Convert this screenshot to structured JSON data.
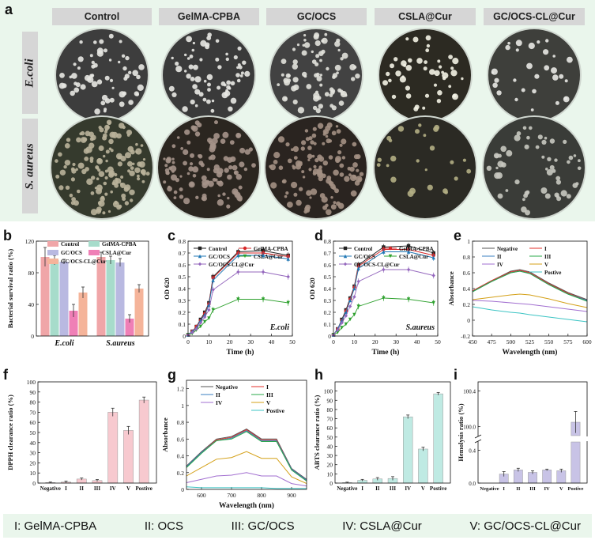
{
  "panel_a": {
    "letter": "a",
    "columns": [
      "Control",
      "GelMA-CPBA",
      "GC/OCS",
      "CSLA@Cur",
      "GC/OCS-CL@Cur"
    ],
    "rows": [
      "E.coli",
      "S. aureus"
    ],
    "background": "#eaf6ec"
  },
  "legend_bar": [
    "I: GelMA-CPBA",
    "II: OCS",
    "III: GC/OCS",
    "IV: CSLA@Cur",
    "V: GC/OCS-CL@Cur"
  ],
  "chart_data": [
    {
      "panel": "b",
      "type": "bar",
      "ylabel": "Bacterial survival ratio (%)",
      "ylim": [
        0,
        120
      ],
      "yticks": [
        0,
        40,
        80,
        120
      ],
      "categories": [
        "E.coli",
        "S.aureus"
      ],
      "legend_placement": "top",
      "series": [
        {
          "name": "Control",
          "color": "#f0a6a8",
          "values": [
            100,
            100
          ],
          "errors": [
            12,
            6
          ]
        },
        {
          "name": "GelMA-CPBA",
          "color": "#a7dccb",
          "values": [
            96,
            96
          ],
          "errors": [
            6,
            5
          ]
        },
        {
          "name": "GC/OCS",
          "color": "#b9b9e1",
          "values": [
            94,
            93
          ],
          "errors": [
            3,
            5
          ]
        },
        {
          "name": "CSLA@Cur",
          "color": "#ef7fb6",
          "values": [
            32,
            22
          ],
          "errors": [
            8,
            5
          ]
        },
        {
          "name": "GC/OCS-CL@Cur",
          "color": "#f5b49a",
          "values": [
            55,
            60
          ],
          "errors": [
            7,
            5
          ]
        }
      ]
    },
    {
      "panel": "c",
      "type": "line",
      "xlabel": "Time (h)",
      "ylabel": "OD 620",
      "annotation": "E.coli",
      "xlim": [
        0,
        50
      ],
      "xticks": [
        0,
        10,
        20,
        30,
        40,
        50
      ],
      "ylim": [
        0,
        0.8
      ],
      "yticks": [
        0.0,
        0.1,
        0.2,
        0.3,
        0.4,
        0.5,
        0.6,
        0.7,
        0.8
      ],
      "x": [
        0,
        2,
        4,
        6,
        8,
        10,
        12,
        24,
        36,
        48
      ],
      "legend_placement": "top",
      "series": [
        {
          "name": "Control",
          "color": "#222222",
          "marker": "square",
          "values": [
            0.01,
            0.04,
            0.08,
            0.14,
            0.2,
            0.28,
            0.5,
            0.71,
            0.72,
            0.68
          ]
        },
        {
          "name": "GelMA-CPBA",
          "color": "#d62728",
          "marker": "circle",
          "values": [
            0.01,
            0.04,
            0.08,
            0.13,
            0.19,
            0.27,
            0.49,
            0.7,
            0.7,
            0.67
          ]
        },
        {
          "name": "GC/OCS",
          "color": "#1f77b4",
          "marker": "triangle",
          "values": [
            0.01,
            0.04,
            0.07,
            0.13,
            0.18,
            0.26,
            0.47,
            0.68,
            0.68,
            0.65
          ]
        },
        {
          "name": "CSLA@Cur",
          "color": "#2ca02c",
          "marker": "triangle-down",
          "values": [
            0.01,
            0.02,
            0.05,
            0.08,
            0.12,
            0.15,
            0.22,
            0.31,
            0.31,
            0.28
          ]
        },
        {
          "name": "GC/OCS-CL@Cur",
          "color": "#9467bd",
          "marker": "diamond",
          "values": [
            0.01,
            0.03,
            0.06,
            0.11,
            0.16,
            0.22,
            0.39,
            0.54,
            0.54,
            0.5
          ]
        }
      ]
    },
    {
      "panel": "d",
      "type": "line",
      "xlabel": "Time (h)",
      "ylabel": "OD 620",
      "annotation": "S.aureus",
      "xlim": [
        0,
        50
      ],
      "xticks": [
        0,
        10,
        20,
        30,
        40,
        50
      ],
      "ylim": [
        0,
        0.8
      ],
      "yticks": [
        0.0,
        0.1,
        0.2,
        0.3,
        0.4,
        0.5,
        0.6,
        0.7,
        0.8
      ],
      "x": [
        0,
        2,
        4,
        6,
        8,
        10,
        12,
        24,
        36,
        48
      ],
      "legend_placement": "top",
      "series": [
        {
          "name": "Control",
          "color": "#222222",
          "marker": "square",
          "values": [
            0.01,
            0.06,
            0.14,
            0.22,
            0.32,
            0.42,
            0.6,
            0.75,
            0.76,
            0.7
          ]
        },
        {
          "name": "GelMA-CPBA",
          "color": "#d62728",
          "marker": "circle",
          "values": [
            0.01,
            0.06,
            0.13,
            0.21,
            0.31,
            0.41,
            0.59,
            0.73,
            0.73,
            0.68
          ]
        },
        {
          "name": "GC/OCS",
          "color": "#1f77b4",
          "marker": "triangle",
          "values": [
            0.01,
            0.06,
            0.13,
            0.2,
            0.3,
            0.4,
            0.57,
            0.71,
            0.71,
            0.66
          ]
        },
        {
          "name": "CSLA@Cur",
          "color": "#2ca02c",
          "marker": "triangle-down",
          "values": [
            0.01,
            0.03,
            0.07,
            0.1,
            0.14,
            0.18,
            0.25,
            0.32,
            0.31,
            0.28
          ]
        },
        {
          "name": "GC/OCS-CL@Cur",
          "color": "#9467bd",
          "marker": "diamond",
          "values": [
            0.01,
            0.05,
            0.11,
            0.17,
            0.25,
            0.33,
            0.46,
            0.56,
            0.56,
            0.51
          ]
        }
      ]
    },
    {
      "panel": "e",
      "type": "line",
      "xlabel": "Wavelength (nm)",
      "ylabel": "Absorbance",
      "xlim": [
        450,
        600
      ],
      "xticks": [
        450,
        475,
        500,
        525,
        550,
        575,
        600
      ],
      "ylim": [
        -0.2,
        1.0
      ],
      "yticks": [
        -0.2,
        0.0,
        0.2,
        0.4,
        0.6,
        0.8,
        1.0
      ],
      "x": [
        450,
        475,
        500,
        512,
        525,
        550,
        575,
        600
      ],
      "legend_placement": "top-right",
      "series": [
        {
          "name": "Negative",
          "color": "#555555",
          "values": [
            0.37,
            0.5,
            0.62,
            0.64,
            0.61,
            0.47,
            0.35,
            0.26
          ]
        },
        {
          "name": "I",
          "color": "#e3322b",
          "values": [
            0.37,
            0.5,
            0.61,
            0.63,
            0.6,
            0.46,
            0.34,
            0.25
          ]
        },
        {
          "name": "II",
          "color": "#3a7fc1",
          "values": [
            0.36,
            0.49,
            0.6,
            0.62,
            0.59,
            0.45,
            0.33,
            0.25
          ]
        },
        {
          "name": "III",
          "color": "#2aa84a",
          "values": [
            0.36,
            0.49,
            0.6,
            0.62,
            0.59,
            0.45,
            0.33,
            0.24
          ]
        },
        {
          "name": "IV",
          "color": "#a26fd0",
          "values": [
            0.25,
            0.24,
            0.22,
            0.21,
            0.2,
            0.17,
            0.14,
            0.11
          ]
        },
        {
          "name": "V",
          "color": "#d4a017",
          "values": [
            0.26,
            0.29,
            0.32,
            0.33,
            0.32,
            0.27,
            0.21,
            0.16
          ]
        },
        {
          "name": "Postive",
          "color": "#3cc4c4",
          "values": [
            0.17,
            0.13,
            0.1,
            0.09,
            0.07,
            0.04,
            0.01,
            -0.02
          ]
        }
      ]
    },
    {
      "panel": "f",
      "type": "bar",
      "ylabel": "DPPH clearance ratio (%)",
      "ylim": [
        0,
        100
      ],
      "yticks": [
        0,
        10,
        20,
        30,
        40,
        50,
        60,
        70,
        80,
        90,
        100
      ],
      "categories": [
        "Negative",
        "I",
        "II",
        "III",
        "IV",
        "V",
        "Postive"
      ],
      "color": "#f7c9cf",
      "values": [
        0.5,
        1,
        4,
        2.5,
        70,
        52,
        82
      ],
      "errors": [
        0.5,
        1,
        1,
        1,
        4,
        4,
        3
      ]
    },
    {
      "panel": "g",
      "type": "line",
      "xlabel": "Wavelength (nm)",
      "ylabel": "Absorbance",
      "xlim": [
        550,
        950
      ],
      "xticks": [
        600,
        700,
        800,
        900
      ],
      "ylim": [
        0,
        1.3
      ],
      "yticks": [
        0.0,
        0.2,
        0.4,
        0.6,
        0.8,
        1.0,
        1.2
      ],
      "x": [
        550,
        600,
        650,
        700,
        750,
        800,
        850,
        900,
        950
      ],
      "legend_placement": "top",
      "series": [
        {
          "name": "Negative",
          "color": "#555555",
          "values": [
            0.28,
            0.45,
            0.6,
            0.63,
            0.72,
            0.6,
            0.6,
            0.25,
            0.12
          ]
        },
        {
          "name": "I",
          "color": "#e3322b",
          "values": [
            0.27,
            0.44,
            0.59,
            0.62,
            0.71,
            0.59,
            0.59,
            0.24,
            0.11
          ]
        },
        {
          "name": "II",
          "color": "#3a7fc1",
          "values": [
            0.27,
            0.44,
            0.58,
            0.61,
            0.7,
            0.58,
            0.58,
            0.24,
            0.11
          ]
        },
        {
          "name": "III",
          "color": "#2aa84a",
          "values": [
            0.26,
            0.43,
            0.58,
            0.6,
            0.69,
            0.57,
            0.57,
            0.23,
            0.1
          ]
        },
        {
          "name": "IV",
          "color": "#a26fd0",
          "values": [
            0.08,
            0.12,
            0.16,
            0.17,
            0.2,
            0.16,
            0.16,
            0.07,
            0.04
          ]
        },
        {
          "name": "V",
          "color": "#d4a017",
          "values": [
            0.16,
            0.26,
            0.36,
            0.38,
            0.45,
            0.37,
            0.37,
            0.15,
            0.07
          ]
        },
        {
          "name": "Postive",
          "color": "#3cc4c4",
          "values": [
            0.03,
            0.02,
            0.02,
            0.02,
            0.02,
            0.02,
            0.01,
            0.01,
            0.01
          ]
        }
      ]
    },
    {
      "panel": "h",
      "type": "bar",
      "ylabel": "ABTS clearance ratio (%)",
      "ylim": [
        0,
        110
      ],
      "yticks": [
        0,
        10,
        20,
        30,
        40,
        50,
        60,
        70,
        80,
        90,
        100
      ],
      "categories": [
        "Negative",
        "I",
        "II",
        "III",
        "IV",
        "V",
        "Postive"
      ],
      "color": "#bfeae3",
      "values": [
        0.5,
        3,
        4.5,
        5,
        72,
        37,
        97
      ],
      "errors": [
        0.5,
        1,
        1.5,
        2,
        2,
        2,
        1.5
      ]
    },
    {
      "panel": "i",
      "type": "bar",
      "ylabel": "Hemolysis ratio (%)",
      "broken_axis": true,
      "yticks_lower": [
        0.0,
        0.4
      ],
      "yticks_upper": [
        100.0,
        100.4
      ],
      "categories": [
        "Negative",
        "I",
        "II",
        "III",
        "IV",
        "V",
        "Postive"
      ],
      "color": "#c8c3e6",
      "values": [
        0.0,
        0.11,
        0.16,
        0.13,
        0.16,
        0.15,
        100.05
      ],
      "errors": [
        0.0,
        0.03,
        0.02,
        0.02,
        0.01,
        0.02,
        0.12
      ]
    }
  ]
}
